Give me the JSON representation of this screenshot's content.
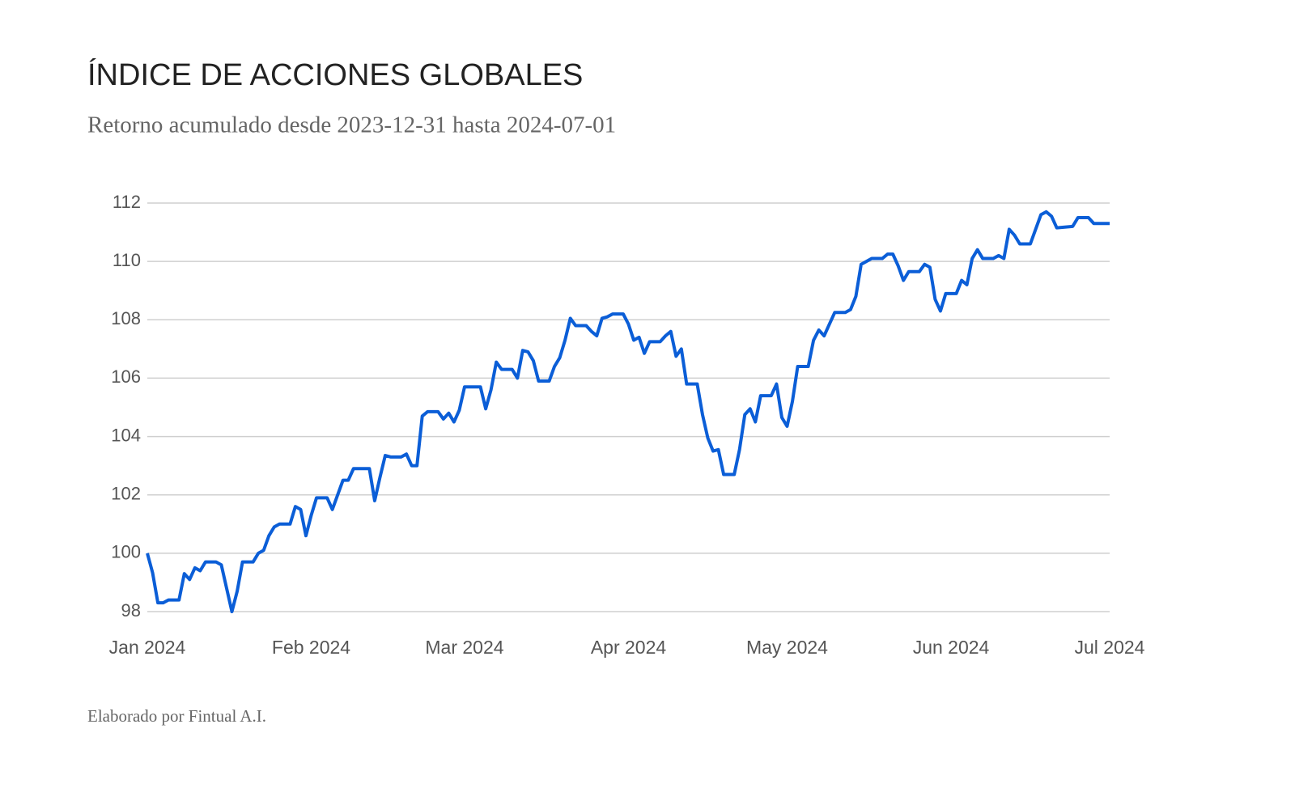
{
  "chart_data": {
    "type": "line",
    "title": "ÍNDICE DE ACCIONES GLOBALES",
    "subtitle": "Retorno acumulado desde 2023-12-31 hasta 2024-07-01",
    "footer": "Elaborado por Fintual A.I.",
    "x": [
      "2024-01-01",
      "2024-01-02",
      "2024-01-03",
      "2024-01-04",
      "2024-01-05",
      "2024-01-07",
      "2024-01-08",
      "2024-01-09",
      "2024-01-10",
      "2024-01-11",
      "2024-01-12",
      "2024-01-14",
      "2024-01-15",
      "2024-01-16",
      "2024-01-17",
      "2024-01-18",
      "2024-01-19",
      "2024-01-21",
      "2024-01-22",
      "2024-01-23",
      "2024-01-24",
      "2024-01-25",
      "2024-01-26",
      "2024-01-28",
      "2024-01-29",
      "2024-01-30",
      "2024-01-31",
      "2024-02-01",
      "2024-02-02",
      "2024-02-04",
      "2024-02-05",
      "2024-02-06",
      "2024-02-07",
      "2024-02-08",
      "2024-02-09",
      "2024-02-12",
      "2024-02-13",
      "2024-02-14",
      "2024-02-15",
      "2024-02-16",
      "2024-02-18",
      "2024-02-19",
      "2024-02-20",
      "2024-02-21",
      "2024-02-22",
      "2024-02-23",
      "2024-02-25",
      "2024-02-26",
      "2024-02-27",
      "2024-02-28",
      "2024-02-29",
      "2024-03-01",
      "2024-03-04",
      "2024-03-05",
      "2024-03-06",
      "2024-03-07",
      "2024-03-08",
      "2024-03-10",
      "2024-03-11",
      "2024-03-12",
      "2024-03-13",
      "2024-03-14",
      "2024-03-15",
      "2024-03-17",
      "2024-03-18",
      "2024-03-19",
      "2024-03-20",
      "2024-03-21",
      "2024-03-22",
      "2024-03-24",
      "2024-03-25",
      "2024-03-26",
      "2024-03-27",
      "2024-03-28",
      "2024-03-29",
      "2024-03-31",
      "2024-04-01",
      "2024-04-02",
      "2024-04-03",
      "2024-04-04",
      "2024-04-05",
      "2024-04-07",
      "2024-04-08",
      "2024-04-09",
      "2024-04-10",
      "2024-04-11",
      "2024-04-12",
      "2024-04-14",
      "2024-04-15",
      "2024-04-16",
      "2024-04-17",
      "2024-04-18",
      "2024-04-19",
      "2024-04-21",
      "2024-04-22",
      "2024-04-23",
      "2024-04-24",
      "2024-04-25",
      "2024-04-26",
      "2024-04-28",
      "2024-04-29",
      "2024-04-30",
      "2024-05-01",
      "2024-05-02",
      "2024-05-03",
      "2024-05-05",
      "2024-05-06",
      "2024-05-07",
      "2024-05-08",
      "2024-05-09",
      "2024-05-10",
      "2024-05-12",
      "2024-05-13",
      "2024-05-14",
      "2024-05-15",
      "2024-05-16",
      "2024-05-17",
      "2024-05-19",
      "2024-05-20",
      "2024-05-21",
      "2024-05-22",
      "2024-05-23",
      "2024-05-24",
      "2024-05-26",
      "2024-05-27",
      "2024-05-28",
      "2024-05-29",
      "2024-05-30",
      "2024-05-31",
      "2024-06-02",
      "2024-06-03",
      "2024-06-04",
      "2024-06-05",
      "2024-06-06",
      "2024-06-07",
      "2024-06-09",
      "2024-06-10",
      "2024-06-11",
      "2024-06-12",
      "2024-06-13",
      "2024-06-14",
      "2024-06-16",
      "2024-06-17",
      "2024-06-18",
      "2024-06-19",
      "2024-06-20",
      "2024-06-21",
      "2024-06-24",
      "2024-06-25",
      "2024-06-27",
      "2024-06-28",
      "2024-07-01"
    ],
    "series": [
      {
        "color": "#0b5ed7",
        "values": [
          100.0,
          99.33,
          98.3,
          98.3,
          98.4,
          98.4,
          99.3,
          99.1,
          99.5,
          99.4,
          99.7,
          99.7,
          99.6,
          98.8,
          98.0,
          98.7,
          99.7,
          99.7,
          100.0,
          100.1,
          100.6,
          100.9,
          101.0,
          101.0,
          101.6,
          101.5,
          100.6,
          101.3,
          101.9,
          101.9,
          101.5,
          102.0,
          102.5,
          102.5,
          102.9,
          102.9,
          101.8,
          102.6,
          103.35,
          103.3,
          103.3,
          103.4,
          103.0,
          103.0,
          104.7,
          104.85,
          104.85,
          104.6,
          104.8,
          104.5,
          104.9,
          105.7,
          105.7,
          104.95,
          105.6,
          106.55,
          106.3,
          106.3,
          106.0,
          106.95,
          106.9,
          106.6,
          105.9,
          105.9,
          106.4,
          106.7,
          107.3,
          108.05,
          107.8,
          107.8,
          107.6,
          107.45,
          108.05,
          108.1,
          108.2,
          108.2,
          107.85,
          107.3,
          107.4,
          106.85,
          107.25,
          107.25,
          107.45,
          107.6,
          106.75,
          107.0,
          105.8,
          105.8,
          104.75,
          103.95,
          103.5,
          103.55,
          102.7,
          102.7,
          103.55,
          104.75,
          104.95,
          104.5,
          105.4,
          105.4,
          105.8,
          104.65,
          104.35,
          105.2,
          106.4,
          106.4,
          107.3,
          107.65,
          107.45,
          107.85,
          108.25,
          108.25,
          108.35,
          108.8,
          109.9,
          110.0,
          110.1,
          110.1,
          110.25,
          110.25,
          109.85,
          109.35,
          109.65,
          109.65,
          109.9,
          109.8,
          108.7,
          108.3,
          108.9,
          108.9,
          109.35,
          109.2,
          110.1,
          110.4,
          110.1,
          110.1,
          110.2,
          110.1,
          111.1,
          110.9,
          110.6,
          110.6,
          111.1,
          111.6,
          111.7,
          111.55,
          111.15,
          111.2,
          111.5,
          111.5,
          111.3,
          111.3
        ]
      }
    ],
    "xlim": [
      "2024-01-01",
      "2024-07-01"
    ],
    "xticks": [
      {
        "value": "2024-01-01",
        "label": "Jan 2024"
      },
      {
        "value": "2024-02-01",
        "label": "Feb 2024"
      },
      {
        "value": "2024-03-01",
        "label": "Mar 2024"
      },
      {
        "value": "2024-04-01",
        "label": "Apr 2024"
      },
      {
        "value": "2024-05-01",
        "label": "May 2024"
      },
      {
        "value": "2024-06-01",
        "label": "Jun 2024"
      },
      {
        "value": "2024-07-01",
        "label": "Jul 2024"
      }
    ],
    "ylim": [
      98,
      112
    ],
    "yticks": [
      98,
      100,
      102,
      104,
      106,
      108,
      110,
      112
    ],
    "grid": true
  }
}
